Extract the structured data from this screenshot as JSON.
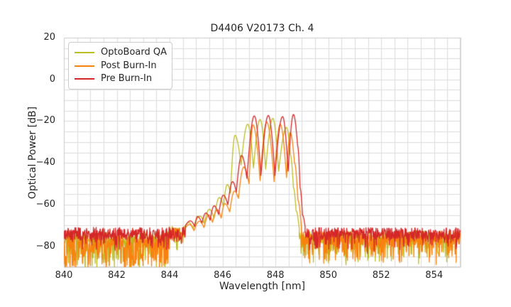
{
  "chart_data": {
    "type": "line",
    "title": "D4406 V20173 Ch. 4",
    "xlabel": "Wavelength [nm]",
    "ylabel": "Optical Power [dB]",
    "xlim": [
      840,
      855
    ],
    "ylim": [
      -90,
      20
    ],
    "x_ticks": [
      840,
      842,
      844,
      846,
      848,
      850,
      852,
      854
    ],
    "y_ticks": [
      {
        "value": 20,
        "label": "20"
      },
      {
        "value": 0,
        "label": "0"
      },
      {
        "value": -20,
        "label": "−20"
      },
      {
        "value": -40,
        "label": "−40"
      },
      {
        "value": -60,
        "label": "−60"
      },
      {
        "value": -80,
        "label": "−80"
      }
    ],
    "grid": {
      "x_step": 0.5,
      "y_step": 5,
      "color": "#dcdcdc",
      "border_color": "#cccccc",
      "show": true
    },
    "legend": {
      "position": "upper-left"
    },
    "series": [
      {
        "name": "OptoBoard QA",
        "color": "#bcbd22",
        "seed": 11,
        "peak_wavelength_nm": 847.9,
        "peak_power_db": -18.7,
        "segments": [
          {
            "type": "noise",
            "x0": 840.0,
            "x1": 843.95,
            "base": -76.0,
            "amp": 3.0,
            "spike_prob": 0.4,
            "spike_depth": 14
          },
          {
            "type": "noise",
            "x0": 843.95,
            "x1": 844.55,
            "base": -73.0,
            "amp": 2.5,
            "spike_prob": 0.18,
            "spike_depth": 7
          },
          {
            "type": "keypoints",
            "points": [
              [
                844.55,
                -71
              ],
              [
                844.72,
                -68.5
              ],
              [
                844.88,
                -71.5
              ],
              [
                845.15,
                -65.5
              ],
              [
                845.3,
                -69
              ],
              [
                845.5,
                -62.3
              ],
              [
                845.68,
                -66.5
              ],
              [
                845.88,
                -56.6
              ],
              [
                846.03,
                -61
              ],
              [
                846.18,
                -50.4
              ],
              [
                846.3,
                -54.5
              ],
              [
                846.47,
                -26.8
              ],
              [
                846.7,
                -41
              ],
              [
                846.95,
                -21.5
              ],
              [
                847.17,
                -42.5
              ],
              [
                847.42,
                -19.2
              ],
              [
                847.63,
                -43
              ],
              [
                847.9,
                -18.7
              ],
              [
                848.12,
                -44
              ],
              [
                848.42,
                -23
              ],
              [
                848.56,
                -36
              ],
              [
                848.68,
                -52
              ],
              [
                848.78,
                -63
              ],
              [
                848.9,
                -71.5
              ]
            ]
          },
          {
            "type": "noise",
            "x0": 848.9,
            "x1": 855.0,
            "base": -75.5,
            "amp": 3.0,
            "spike_prob": 0.25,
            "spike_depth": 11
          }
        ]
      },
      {
        "name": "Post Burn-In",
        "color": "#f8820e",
        "seed": 23,
        "peak_wavelength_nm": 847.67,
        "peak_power_db": -20.5,
        "segments": [
          {
            "type": "noise",
            "x0": 840.0,
            "x1": 843.95,
            "base": -77.5,
            "amp": 3.5,
            "spike_prob": 0.5,
            "spike_depth": 13
          },
          {
            "type": "noise",
            "x0": 843.95,
            "x1": 844.55,
            "base": -73.5,
            "amp": 2.6,
            "spike_prob": 0.25,
            "spike_depth": 8
          },
          {
            "type": "keypoints",
            "points": [
              [
                844.55,
                -72
              ],
              [
                844.75,
                -69.5
              ],
              [
                844.92,
                -72.5
              ],
              [
                845.12,
                -68
              ],
              [
                845.3,
                -71
              ],
              [
                845.48,
                -65
              ],
              [
                845.62,
                -68.5
              ],
              [
                845.8,
                -62.5
              ],
              [
                845.95,
                -66.5
              ],
              [
                846.08,
                -59.5
              ],
              [
                846.27,
                -63.5
              ],
              [
                846.45,
                -53.5
              ],
              [
                846.6,
                -57
              ],
              [
                846.8,
                -42
              ],
              [
                847.0,
                -50
              ],
              [
                847.15,
                -21.8
              ],
              [
                847.42,
                -48.5
              ],
              [
                847.67,
                -20.5
              ],
              [
                847.95,
                -49
              ],
              [
                848.18,
                -21.5
              ],
              [
                848.42,
                -47
              ],
              [
                848.56,
                -25.5
              ],
              [
                848.72,
                -40
              ],
              [
                848.85,
                -58
              ],
              [
                848.98,
                -71
              ]
            ]
          },
          {
            "type": "noise",
            "x0": 848.98,
            "x1": 855.0,
            "base": -76.0,
            "amp": 3.2,
            "spike_prob": 0.32,
            "spike_depth": 10
          }
        ]
      },
      {
        "name": "Pre Burn-In",
        "color": "#d62728",
        "seed": 5,
        "peak_wavelength_nm": 848.68,
        "peak_power_db": -16.8,
        "segments": [
          {
            "type": "noise",
            "x0": 840.0,
            "x1": 844.6,
            "base": -73.8,
            "amp": 3.0,
            "spike_prob": 0.28,
            "spike_depth": 6
          },
          {
            "type": "keypoints",
            "points": [
              [
                844.6,
                -70
              ],
              [
                844.78,
                -67.8
              ],
              [
                844.95,
                -70.5
              ],
              [
                845.05,
                -65.7
              ],
              [
                845.22,
                -68.8
              ],
              [
                845.37,
                -64
              ],
              [
                845.53,
                -67.5
              ],
              [
                845.68,
                -60.6
              ],
              [
                845.85,
                -64.8
              ],
              [
                846.03,
                -55.5
              ],
              [
                846.2,
                -60
              ],
              [
                846.38,
                -49
              ],
              [
                846.52,
                -54
              ],
              [
                846.72,
                -36.5
              ],
              [
                846.92,
                -47.5
              ],
              [
                847.2,
                -17.5
              ],
              [
                847.45,
                -46
              ],
              [
                847.73,
                -17.3
              ],
              [
                847.98,
                -46
              ],
              [
                848.27,
                -17.8
              ],
              [
                848.48,
                -44
              ],
              [
                848.68,
                -16.8
              ],
              [
                848.84,
                -32
              ],
              [
                848.93,
                -52
              ],
              [
                849.02,
                -65
              ],
              [
                849.12,
                -70.5
              ]
            ]
          },
          {
            "type": "noise",
            "x0": 849.12,
            "x1": 855.0,
            "base": -73.8,
            "amp": 2.8,
            "spike_prob": 0.22,
            "spike_depth": 7
          }
        ]
      }
    ]
  }
}
